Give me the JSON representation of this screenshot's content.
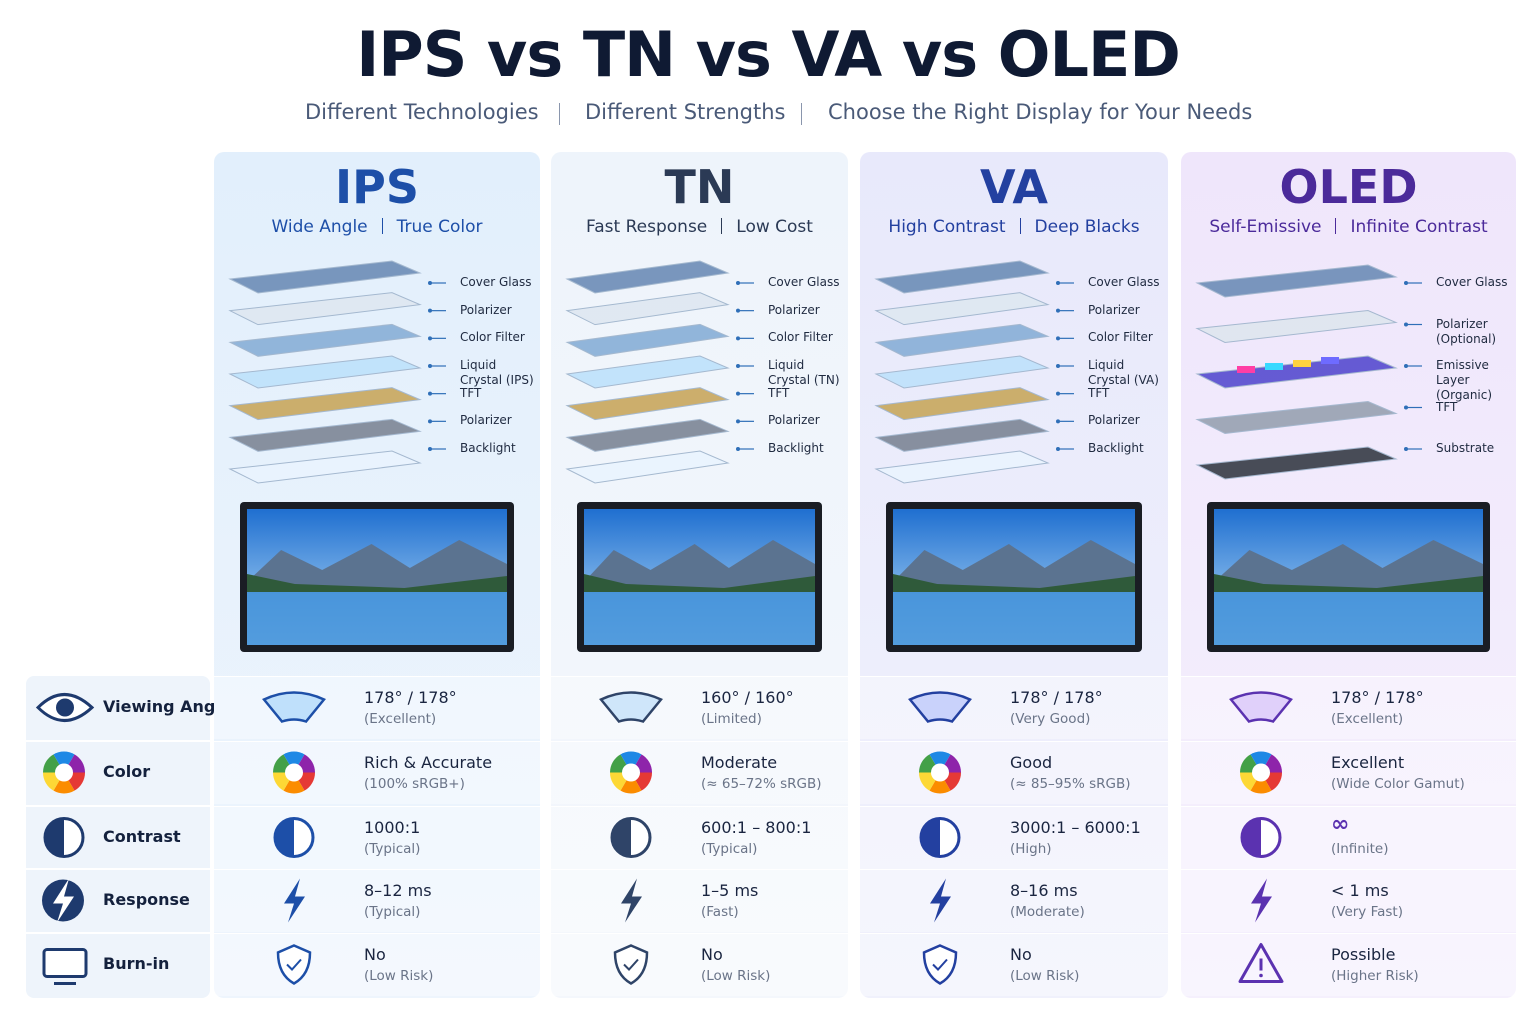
{
  "header": {
    "title": "IPS vs TN vs VA vs OLED",
    "subtitle": [
      "Different Technologies",
      "Different Strengths",
      "Choose the Right Display for Your Needs"
    ]
  },
  "features": [
    "Viewing Angle",
    "Color",
    "Contrast",
    "Response",
    "Burn-in"
  ],
  "columns": [
    {
      "name": "IPS",
      "tagline": [
        "Wide Angle",
        "True Color"
      ],
      "layers": [
        "Cover Glass",
        "Polarizer",
        "Color Filter",
        "Liquid Crystal (IPS)",
        "TFT",
        "Polarizer",
        "Backlight"
      ],
      "specs": [
        {
          "main": "178° / 178°",
          "note": "(Excellent)"
        },
        {
          "main": "Rich & Accurate",
          "note": "(100% sRGB+)"
        },
        {
          "main": "1000:1",
          "note": "(Typical)"
        },
        {
          "main": "8–12 ms",
          "note": "(Typical)"
        },
        {
          "main": "No",
          "note": "(Low Risk)"
        }
      ]
    },
    {
      "name": "TN",
      "tagline": [
        "Fast Response",
        "Low Cost"
      ],
      "layers": [
        "Cover Glass",
        "Polarizer",
        "Color Filter",
        "Liquid Crystal (TN)",
        "TFT",
        "Polarizer",
        "Backlight"
      ],
      "specs": [
        {
          "main": "160° / 160°",
          "note": "(Limited)"
        },
        {
          "main": "Moderate",
          "note": "(≈ 65–72% sRGB)"
        },
        {
          "main": "600:1 – 800:1",
          "note": "(Typical)"
        },
        {
          "main": "1–5 ms",
          "note": "(Fast)"
        },
        {
          "main": "No",
          "note": "(Low Risk)"
        }
      ]
    },
    {
      "name": "VA",
      "tagline": [
        "High Contrast",
        "Deep Blacks"
      ],
      "layers": [
        "Cover Glass",
        "Polarizer",
        "Color Filter",
        "Liquid Crystal (VA)",
        "TFT",
        "Polarizer",
        "Backlight"
      ],
      "specs": [
        {
          "main": "178° / 178°",
          "note": "(Very Good)"
        },
        {
          "main": "Good",
          "note": "(≈ 85–95% sRGB)"
        },
        {
          "main": "3000:1 – 6000:1",
          "note": "(High)"
        },
        {
          "main": "8–16 ms",
          "note": "(Moderate)"
        },
        {
          "main": "No",
          "note": "(Low Risk)"
        }
      ]
    },
    {
      "name": "OLED",
      "tagline": [
        "Self-Emissive",
        "Infinite Contrast"
      ],
      "layers": [
        "Cover Glass",
        "Polarizer (Optional)",
        "Emissive Layer (Organic)",
        "TFT",
        "Substrate"
      ],
      "specs": [
        {
          "main": "178° / 178°",
          "note": "(Excellent)"
        },
        {
          "main": "Excellent",
          "note": "(Wide Color Gamut)"
        },
        {
          "main": "∞",
          "note": "(Infinite)"
        },
        {
          "main": "< 1 ms",
          "note": "(Very Fast)"
        },
        {
          "main": "Possible",
          "note": "(Higher Risk)"
        }
      ]
    }
  ]
}
